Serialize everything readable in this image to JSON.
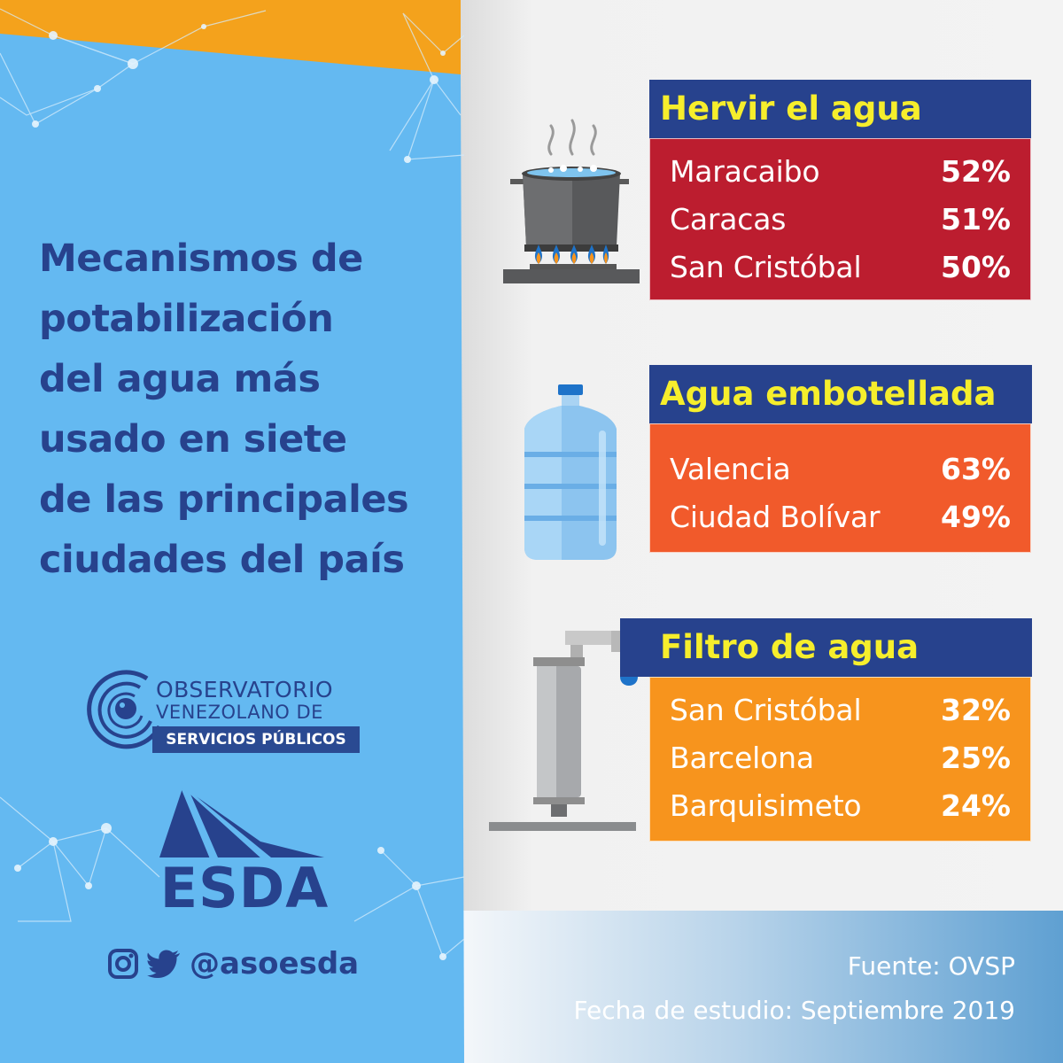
{
  "title_lines": [
    "Mecanismos de",
    "potabilización",
    "del agua más",
    "usado en siete",
    "de las principales",
    "ciudades del país"
  ],
  "logo_ovsp": {
    "word1": "OBSERVATORIO",
    "word2": "VENEZOLANO DE",
    "banner": "SERVICIOS PÚBLICOS"
  },
  "logo_esda": "ESDA",
  "social": {
    "icons": [
      "instagram-icon",
      "twitter-icon"
    ],
    "handle": "@asoesda"
  },
  "sections": [
    {
      "heading": "Hervir el agua",
      "illustration": "boiling-pot-icon",
      "rows": [
        {
          "city": "Maracaibo",
          "pct": "52%"
        },
        {
          "city": "Caracas",
          "pct": "51%"
        },
        {
          "city": "San Cristóbal",
          "pct": "50%"
        }
      ]
    },
    {
      "heading": "Agua embotellada",
      "illustration": "water-bottle-icon",
      "rows": [
        {
          "city": "Valencia",
          "pct": "63%"
        },
        {
          "city": "Ciudad Bolívar",
          "pct": "49%"
        }
      ]
    },
    {
      "heading": "Filtro de agua",
      "illustration": "water-filter-icon",
      "rows": [
        {
          "city": "San Cristóbal",
          "pct": "32%"
        },
        {
          "city": "Barcelona",
          "pct": "25%"
        },
        {
          "city": "Barquisimeto",
          "pct": "24%"
        }
      ]
    }
  ],
  "footer": {
    "source": "Fuente: OVSP",
    "date": "Fecha de estudio: Septiembre  2019"
  },
  "colors": {
    "navy": "#27428d",
    "yellow": "#f6ee2c",
    "sky_blue": "#64b9f1",
    "orange_band": "#f4a21c",
    "red": "#bc1d2f",
    "orange_red": "#f15a2b",
    "orange": "#f7941d"
  }
}
